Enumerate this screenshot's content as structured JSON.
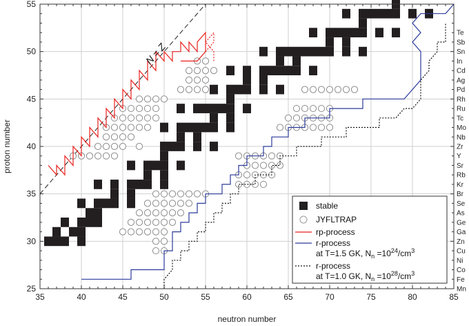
{
  "chart_data": {
    "type": "scatter",
    "xlabel": "neutron number",
    "ylabel": "proton number",
    "xlim": [
      35,
      85
    ],
    "ylim": [
      25,
      55
    ],
    "x_ticks": [
      35,
      40,
      45,
      50,
      55,
      60,
      65,
      70,
      75,
      80,
      85
    ],
    "y_ticks": [
      25,
      30,
      35,
      40,
      45,
      50,
      55
    ],
    "grid": true,
    "annotations": [
      {
        "text": "N = Z",
        "line": [
          [
            35,
            35
          ],
          [
            55,
            55
          ]
        ]
      }
    ],
    "element_labels": [
      {
        "z": 52,
        "symbol": "Te"
      },
      {
        "z": 51,
        "symbol": "Sb"
      },
      {
        "z": 50,
        "symbol": "Sn"
      },
      {
        "z": 49,
        "symbol": "In"
      },
      {
        "z": 48,
        "symbol": "Cd"
      },
      {
        "z": 47,
        "symbol": "Ag"
      },
      {
        "z": 46,
        "symbol": "Pd"
      },
      {
        "z": 45,
        "symbol": "Rh"
      },
      {
        "z": 44,
        "symbol": "Ru"
      },
      {
        "z": 43,
        "symbol": "Tc"
      },
      {
        "z": 42,
        "symbol": "Mo"
      },
      {
        "z": 41,
        "symbol": "Nb"
      },
      {
        "z": 40,
        "symbol": "Zr"
      },
      {
        "z": 39,
        "symbol": "Y"
      },
      {
        "z": 38,
        "symbol": "Sr"
      },
      {
        "z": 37,
        "symbol": "Rb"
      },
      {
        "z": 36,
        "symbol": "Kr"
      },
      {
        "z": 35,
        "symbol": "Br"
      },
      {
        "z": 34,
        "symbol": "Se"
      },
      {
        "z": 33,
        "symbol": "As"
      },
      {
        "z": 32,
        "symbol": "Ge"
      },
      {
        "z": 31,
        "symbol": "Ga"
      },
      {
        "z": 30,
        "symbol": "Zn"
      },
      {
        "z": 29,
        "symbol": "Cu"
      },
      {
        "z": 28,
        "symbol": "Ni"
      },
      {
        "z": 27,
        "symbol": "Co"
      },
      {
        "z": 26,
        "symbol": "Fe"
      },
      {
        "z": 25,
        "symbol": "Mn"
      }
    ],
    "legend": {
      "position": "bottom-right",
      "entries": [
        {
          "label": "stable",
          "marker": "square",
          "color": "#231f20"
        },
        {
          "label": "JYFLTRAP",
          "marker": "circle",
          "color": "#9a9a9a"
        },
        {
          "label": "rp-process",
          "marker": "line",
          "color": "#e8211d"
        },
        {
          "label": "r-process",
          "marker": "line",
          "color": "#2b3a9b",
          "sub": "at T=1.5 GK, N",
          "sub_n": "n",
          "sub_val": " =10",
          "sub_exp": "24",
          "sub_unit": "/cm",
          "sub_unit_exp": "3"
        },
        {
          "label": "r-process",
          "marker": "dotted-line",
          "color": "#111111",
          "sub": "at T=1.0 GK, N",
          "sub_n": "n",
          "sub_val": " =10",
          "sub_exp": "28",
          "sub_unit": "/cm",
          "sub_unit_exp": "3"
        }
      ]
    },
    "stable": {
      "30": [
        36,
        37,
        38,
        40
      ],
      "31": [
        37,
        39,
        40
      ],
      "32": [
        38,
        40,
        41,
        42
      ],
      "33": [
        41,
        42
      ],
      "34": [
        40,
        42,
        43,
        44,
        46
      ],
      "35": [
        44,
        46
      ],
      "36": [
        42,
        44,
        46,
        47,
        48,
        50
      ],
      "37": [
        48,
        50
      ],
      "38": [
        46,
        48,
        49,
        50,
        52
      ],
      "39": [
        50
      ],
      "40": [
        50,
        51,
        52,
        54,
        56
      ],
      "41": [
        52,
        54
      ],
      "42": [
        50,
        52,
        53,
        54,
        55,
        56,
        58
      ],
      "43": [
        56,
        58
      ],
      "44": [
        52,
        54,
        55,
        56,
        57,
        58,
        60
      ],
      "45": [
        58
      ],
      "46": [
        56,
        58,
        59,
        60,
        62,
        64
      ],
      "47": [
        60,
        62
      ],
      "48": [
        58,
        60,
        62,
        63,
        64,
        65,
        66,
        68
      ],
      "49": [
        64,
        66
      ],
      "50": [
        62,
        64,
        65,
        66,
        67,
        68,
        69,
        70,
        72,
        74
      ],
      "51": [
        70,
        72
      ],
      "52": [
        68,
        70,
        71,
        72,
        73,
        74,
        76,
        78
      ],
      "53": [
        74
      ],
      "54": [
        72,
        74,
        75,
        76,
        77,
        78,
        80,
        82
      ],
      "55": [
        78
      ]
    },
    "jyfltrap": {
      "29": [
        49,
        50
      ],
      "30": [
        49,
        50
      ],
      "31": [
        45,
        46,
        47,
        48,
        49,
        50
      ],
      "32": [
        46,
        47,
        48,
        49,
        50,
        51
      ],
      "33": [
        47,
        48,
        49,
        50,
        51,
        52
      ],
      "34": [
        48,
        49,
        50,
        51,
        52,
        53
      ],
      "35": [
        49,
        50,
        51,
        52,
        53,
        54,
        55
      ],
      "36": [
        59,
        60,
        61,
        62
      ],
      "37": [
        59,
        60,
        61,
        62,
        63
      ],
      "38": [
        60,
        61,
        62,
        63,
        64
      ],
      "39": [
        39,
        40,
        41,
        42,
        43,
        44,
        59,
        60,
        61,
        62,
        63,
        64
      ],
      "40": [
        42,
        43,
        44,
        45,
        47
      ],
      "41": [
        43,
        44,
        45,
        46
      ],
      "42": [
        43,
        44,
        45,
        46,
        47,
        48,
        64,
        65,
        66,
        67,
        68,
        69,
        70
      ],
      "43": [
        44,
        45,
        46,
        47,
        48,
        49,
        65,
        66,
        67,
        68,
        69,
        70
      ],
      "44": [
        45,
        46,
        47,
        48,
        49,
        66,
        67,
        68,
        69,
        70
      ],
      "45": [
        47,
        48,
        49,
        50
      ],
      "46": [
        52,
        53,
        54,
        55,
        67,
        68,
        69,
        70,
        71,
        72,
        73
      ],
      "47": [
        53,
        54,
        55
      ],
      "48": [
        53,
        54,
        55,
        56
      ],
      "49": [
        54,
        55
      ]
    },
    "rp_process": [
      [
        36,
        38
      ],
      [
        37,
        37
      ],
      [
        37,
        38
      ],
      [
        38,
        37
      ],
      [
        38,
        39
      ],
      [
        39,
        38
      ],
      [
        39,
        40
      ],
      [
        40,
        39
      ],
      [
        40,
        41
      ],
      [
        41,
        40
      ],
      [
        41,
        42
      ],
      [
        42,
        41
      ],
      [
        42,
        43
      ],
      [
        43,
        42
      ],
      [
        43,
        44
      ],
      [
        44,
        43
      ],
      [
        44,
        45
      ],
      [
        45,
        44
      ],
      [
        45,
        46
      ],
      [
        46,
        45
      ],
      [
        46,
        47
      ],
      [
        47,
        46
      ],
      [
        47,
        48
      ],
      [
        48,
        47
      ],
      [
        48,
        49
      ],
      [
        49,
        48
      ],
      [
        49,
        50
      ],
      [
        50,
        49
      ],
      [
        50,
        50
      ],
      [
        51,
        49
      ],
      [
        51,
        50
      ],
      [
        52,
        50
      ],
      [
        52,
        51
      ],
      [
        53,
        50
      ],
      [
        53,
        51
      ],
      [
        54,
        50
      ],
      [
        54,
        51
      ],
      [
        55,
        52
      ],
      [
        55,
        50
      ],
      [
        54,
        49
      ],
      [
        52,
        49
      ]
    ],
    "rp_dotted": [
      [
        55,
        50
      ],
      [
        56,
        51
      ],
      [
        56,
        52
      ],
      [
        55,
        51
      ],
      [
        56,
        50
      ],
      [
        56,
        49
      ]
    ],
    "r_process_15": [
      [
        40,
        26
      ],
      [
        46,
        26
      ],
      [
        46,
        27
      ],
      [
        50,
        27
      ],
      [
        50,
        29
      ],
      [
        51,
        29
      ],
      [
        51,
        31
      ],
      [
        52,
        31
      ],
      [
        52,
        32
      ],
      [
        53,
        32
      ],
      [
        53,
        33
      ],
      [
        54,
        33
      ],
      [
        54,
        34
      ],
      [
        55,
        34
      ],
      [
        55,
        35
      ],
      [
        57,
        35
      ],
      [
        57,
        36
      ],
      [
        58,
        36
      ],
      [
        58,
        37
      ],
      [
        59,
        37
      ],
      [
        59,
        38
      ],
      [
        60,
        38
      ],
      [
        60,
        39
      ],
      [
        62,
        39
      ],
      [
        62,
        40
      ],
      [
        63,
        40
      ],
      [
        63,
        41
      ],
      [
        65,
        41
      ],
      [
        65,
        42
      ],
      [
        67,
        42
      ],
      [
        67,
        43
      ],
      [
        70,
        43
      ],
      [
        70,
        44
      ],
      [
        74,
        44
      ],
      [
        74,
        45
      ],
      [
        79,
        45
      ],
      [
        80,
        46
      ],
      [
        81,
        47
      ],
      [
        81,
        50
      ],
      [
        80,
        51
      ],
      [
        81,
        52
      ],
      [
        80,
        53
      ],
      [
        81,
        54
      ],
      [
        84,
        54
      ],
      [
        85,
        55
      ]
    ],
    "r_process_10": [
      [
        50,
        25
      ],
      [
        50,
        26
      ],
      [
        51,
        27
      ],
      [
        51,
        28
      ],
      [
        52,
        28
      ],
      [
        52,
        29
      ],
      [
        53,
        29
      ],
      [
        53,
        30
      ],
      [
        54,
        30
      ],
      [
        54,
        31
      ],
      [
        55,
        31
      ],
      [
        55,
        32
      ],
      [
        56,
        32
      ],
      [
        56,
        33
      ],
      [
        57,
        33
      ],
      [
        57,
        34
      ],
      [
        58,
        34
      ],
      [
        58,
        35
      ],
      [
        59,
        35
      ],
      [
        59,
        36
      ],
      [
        61,
        36
      ],
      [
        61,
        37
      ],
      [
        63,
        37
      ],
      [
        63,
        38
      ],
      [
        64,
        38
      ],
      [
        64,
        39
      ],
      [
        66,
        39
      ],
      [
        66,
        40
      ],
      [
        69,
        40
      ],
      [
        69,
        41
      ],
      [
        72,
        41
      ],
      [
        72,
        42
      ],
      [
        76,
        42
      ],
      [
        76,
        43
      ],
      [
        78,
        43
      ],
      [
        79,
        44
      ],
      [
        80,
        44
      ],
      [
        81,
        45
      ],
      [
        81,
        47
      ],
      [
        82,
        48
      ],
      [
        82,
        49
      ],
      [
        83,
        50
      ],
      [
        83,
        51
      ],
      [
        84,
        51
      ],
      [
        84,
        53
      ]
    ]
  }
}
